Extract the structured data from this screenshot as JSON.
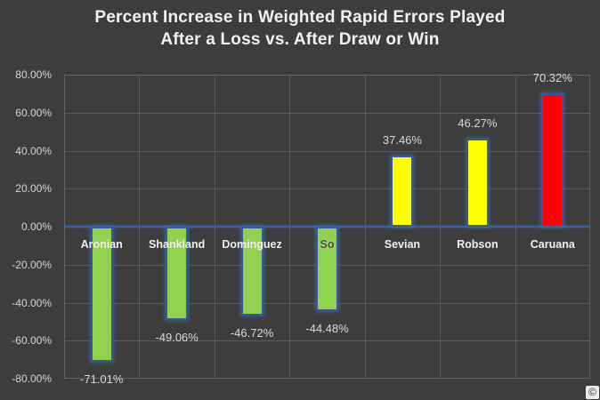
{
  "title": {
    "line1": "Percent Increase in Weighted Rapid Errors Played",
    "line2": "After a Loss vs. After Draw or Win"
  },
  "chart_data": {
    "type": "bar",
    "title": "Percent Increase in Weighted Rapid Errors Played After a Loss vs. After Draw or Win",
    "categories": [
      "Aronian",
      "Shankland",
      "Dominguez",
      "So",
      "Sevian",
      "Robson",
      "Caruana"
    ],
    "values": [
      -71.01,
      -49.06,
      -46.72,
      -44.48,
      37.46,
      46.27,
      70.32
    ],
    "value_labels": [
      "-71.01%",
      "-49.06%",
      "-46.72%",
      "-44.48%",
      "37.46%",
      "46.27%",
      "70.32%"
    ],
    "bar_colors": [
      "#92d050",
      "#92d050",
      "#92d050",
      "#92d050",
      "#ffff00",
      "#ffff00",
      "#ff0000"
    ],
    "bar_border_color": "#35599b",
    "category_label_classes": [
      "",
      "",
      "",
      "on-bar",
      "",
      "",
      ""
    ],
    "category_label_colors": [
      "#eff0ef",
      "#eff0ef",
      "#eff0ef",
      "#4e4e4e",
      "#eff0ef",
      "#eff0ef",
      "#eff0ef"
    ],
    "xlabel": "",
    "ylabel": "",
    "ylim": [
      -80,
      80
    ],
    "ytick_step": 20,
    "ytick_labels": [
      "80.00%",
      "60.00%",
      "40.00%",
      "20.00%",
      "0.00%",
      "-20.00%",
      "-40.00%",
      "-60.00%",
      "-80.00%"
    ],
    "grid": true,
    "legend": false
  },
  "colors": {
    "background": "#3d3d3d",
    "grid": "#5c5c5c",
    "plot_border": "#636363",
    "zero_line": "#3c5f9e",
    "title_text": "#f2f2f2",
    "tick_text": "#d4d4d4",
    "data_label_text": "#d9d9d9"
  },
  "watermark": {
    "glyph": "©"
  }
}
